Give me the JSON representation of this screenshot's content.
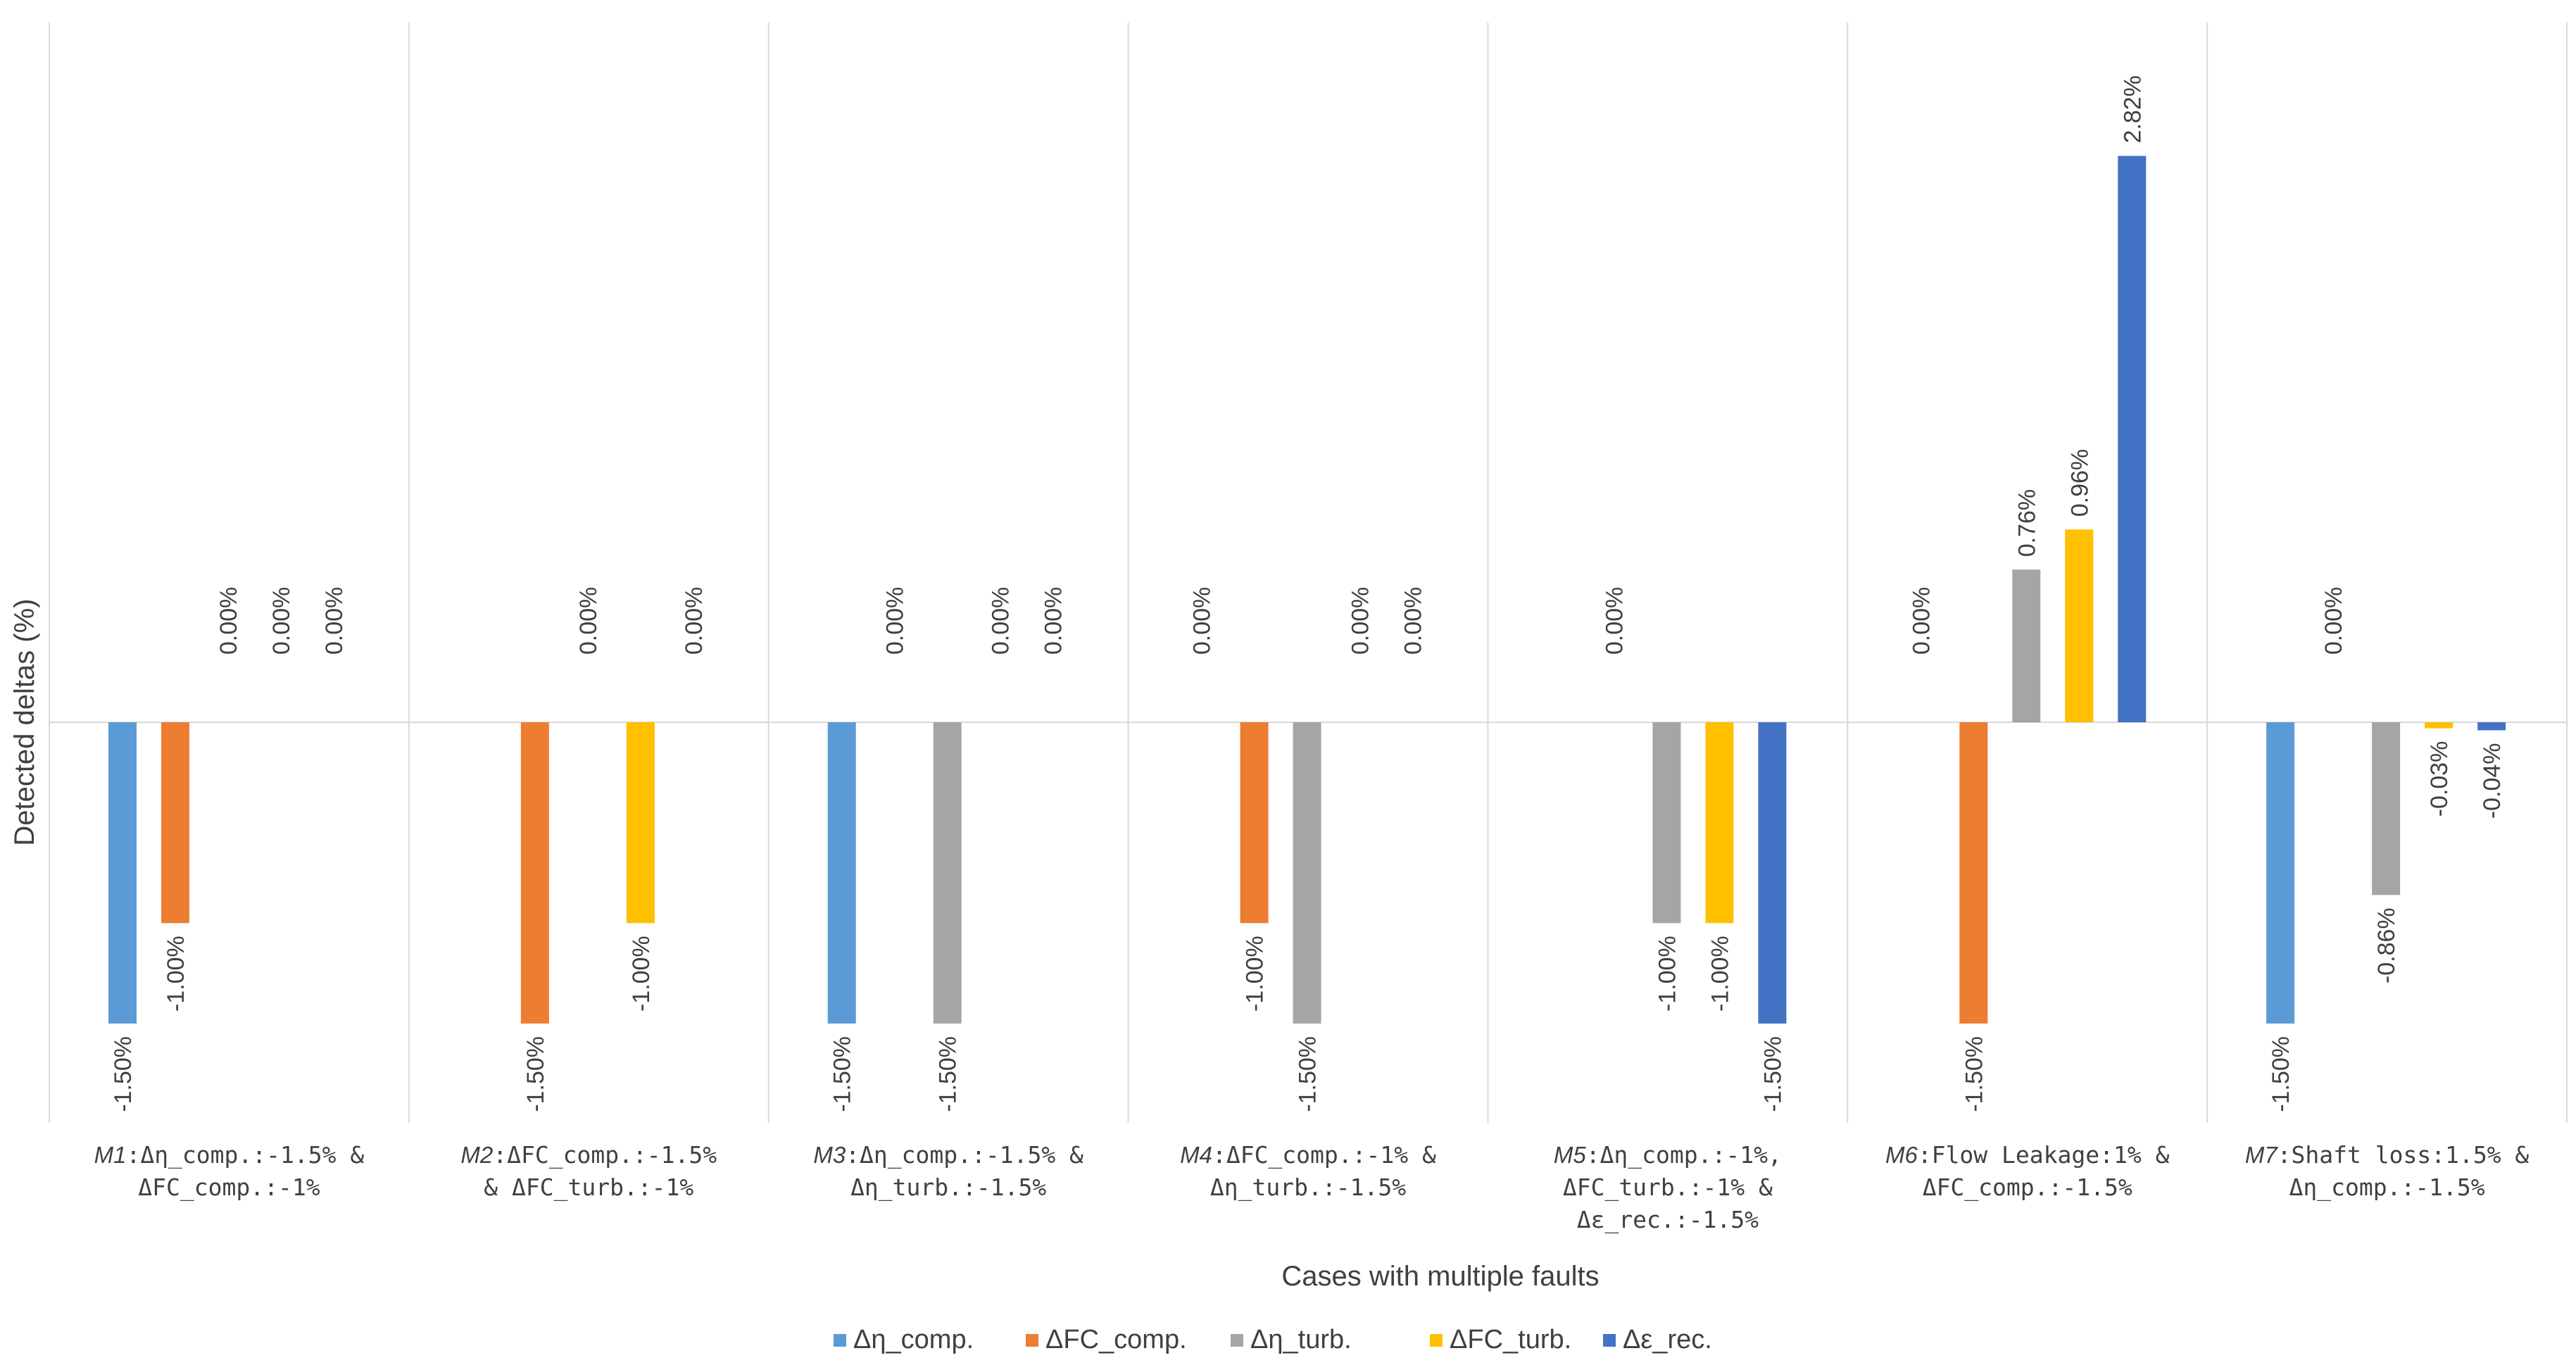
{
  "chart_data": {
    "type": "bar",
    "title": "",
    "xlabel": "Cases with multiple faults",
    "ylabel": "Detected deltas (%)",
    "ylim": [
      -3.7,
      4.5
    ],
    "grid": "vertical separators between categories",
    "legend_position": "bottom",
    "categories": [
      {
        "id": "M1",
        "desc_lines": [
          ":Δη_comp.:-1.5% &",
          "ΔFC_comp.:-1%"
        ]
      },
      {
        "id": "M2",
        "desc_lines": [
          ":ΔFC_comp.:-1.5%",
          "& ΔFC_turb.:-1%"
        ]
      },
      {
        "id": "M3",
        "desc_lines": [
          ":Δη_comp.:-1.5% &",
          "Δη_turb.:-1.5%"
        ]
      },
      {
        "id": "M4",
        "desc_lines": [
          ":ΔFC_comp.:-1% &",
          "Δη_turb.:-1.5%"
        ]
      },
      {
        "id": "M5",
        "desc_lines": [
          ":Δη_comp.:-1%,",
          "ΔFC_turb.:-1% &",
          "Δε_rec.:-1.5%"
        ]
      },
      {
        "id": "M6",
        "desc_lines": [
          ":Flow Leakage:1% &",
          "ΔFC_comp.:-1.5%"
        ]
      },
      {
        "id": "M7",
        "desc_lines": [
          ":Shaft loss:1.5%  &",
          "Δη_comp.:-1.5%"
        ]
      }
    ],
    "series": [
      {
        "name": "Δη_comp.",
        "color": "#5B9BD5",
        "values": [
          -1.5,
          null,
          -1.5,
          0.0,
          null,
          0.0,
          -1.5
        ],
        "labels": [
          "-1.50%",
          "",
          "-1.50%",
          "0.00%",
          "",
          "0.00%",
          "-1.50%"
        ]
      },
      {
        "name": "ΔFC_comp.",
        "color": "#ED7D31",
        "values": [
          -1.0,
          -1.5,
          0.0,
          -1.0,
          0.0,
          -1.5,
          0.0
        ],
        "labels": [
          "-1.00%",
          "-1.50%",
          "0.00%",
          "-1.00%",
          "0.00%",
          "-1.50%",
          "0.00%"
        ]
      },
      {
        "name": "Δη_turb.",
        "color": "#A5A5A5",
        "values": [
          0.0,
          0.0,
          -1.5,
          -1.5,
          -1.0,
          0.76,
          -0.86
        ],
        "labels": [
          "0.00%",
          "0.00%",
          "-1.50%",
          "-1.50%",
          "-1.00%",
          "0.76%",
          "-0.86%"
        ]
      },
      {
        "name": "ΔFC_turb.",
        "color": "#FFC000",
        "values": [
          0.0,
          -1.0,
          0.0,
          0.0,
          -1.0,
          0.96,
          -0.03
        ],
        "labels": [
          "0.00%",
          "-1.00%",
          "0.00%",
          "0.00%",
          "-1.00%",
          "0.96%",
          "-0.03%"
        ]
      },
      {
        "name": "Δε_rec.",
        "color": "#4472C4",
        "values": [
          0.0,
          0.0,
          0.0,
          0.0,
          -1.5,
          2.82,
          -0.04
        ],
        "labels": [
          "0.00%",
          "0.00%",
          "0.00%",
          "0.00%",
          "-1.50%",
          "2.82%",
          "-0.04%"
        ]
      }
    ]
  }
}
